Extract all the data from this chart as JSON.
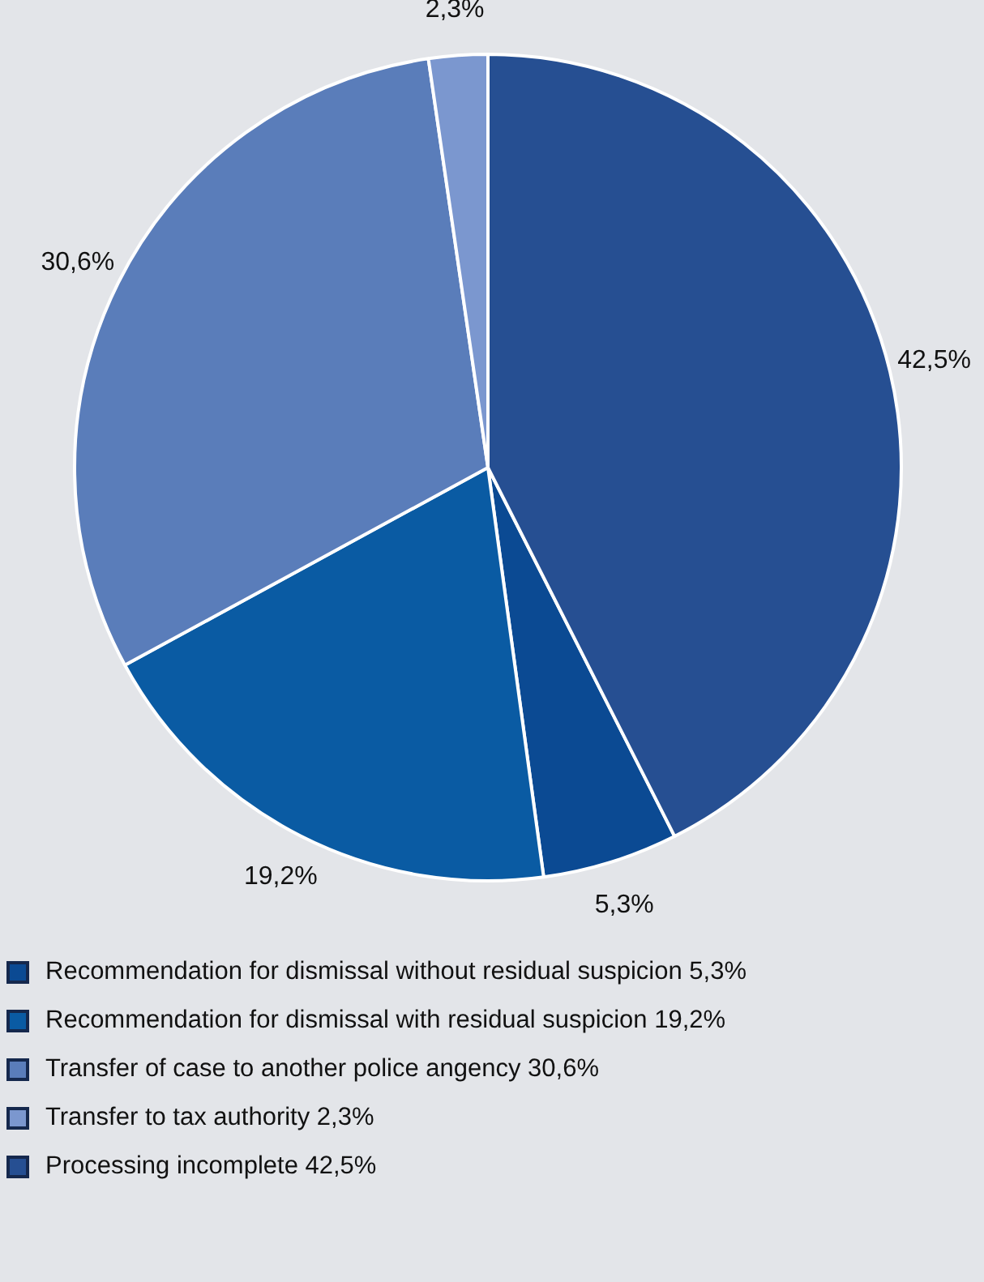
{
  "chart_data": {
    "type": "pie",
    "categories": [
      "Recommendation for dismissal without residual suspicion 5,3%",
      "Recommendation for dismissal with residual suspicion 19,2%",
      "Transfer of case to another police angency 30,6%",
      "Transfer to tax authority 2,3%",
      "Processing incomplete 42,5%"
    ],
    "values": [
      5.3,
      19.2,
      30.6,
      2.3,
      42.5
    ],
    "colors": [
      "#0b4a93",
      "#0a5ba3",
      "#5a7dba",
      "#7b97cf",
      "#264f92"
    ],
    "value_labels": [
      "5,3%",
      "19,2%",
      "30,6%",
      "2,3%",
      "42,5%"
    ],
    "legend": "bottom"
  }
}
